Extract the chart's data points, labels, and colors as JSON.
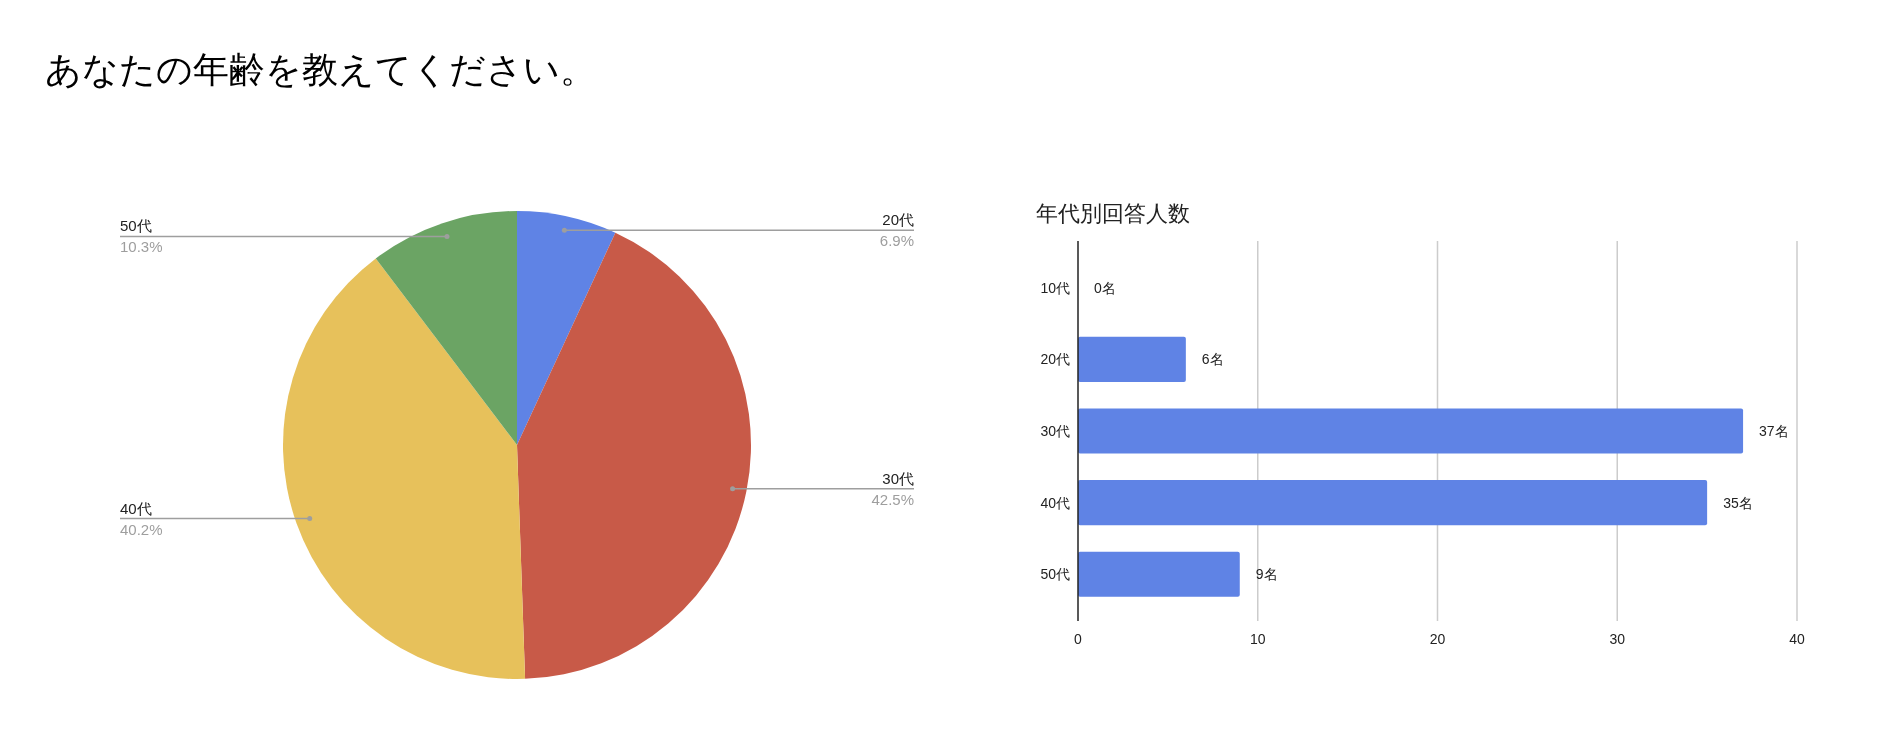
{
  "chart_data": [
    {
      "type": "pie",
      "title": "あなたの年齢を教えてください。",
      "categories": [
        "20代",
        "30代",
        "40代",
        "50代"
      ],
      "values": [
        6.9,
        42.5,
        40.2,
        10.3
      ],
      "colors": [
        "#5f83e5",
        "#c85a48",
        "#e7c15b",
        "#6ba464"
      ],
      "value_labels": [
        "6.9%",
        "42.5%",
        "40.2%",
        "10.3%"
      ]
    },
    {
      "type": "bar",
      "orientation": "horizontal",
      "title": "年代別回答人数",
      "categories": [
        "10代",
        "20代",
        "30代",
        "40代",
        "50代"
      ],
      "values": [
        0,
        6,
        37,
        35,
        9
      ],
      "color": "#5f83e5",
      "value_labels": [
        "0名",
        "6名",
        "37名",
        "35名",
        "9名"
      ],
      "xlim": [
        0,
        40
      ],
      "xticks": [
        0,
        10,
        20,
        30,
        40
      ],
      "grid": "x"
    }
  ]
}
